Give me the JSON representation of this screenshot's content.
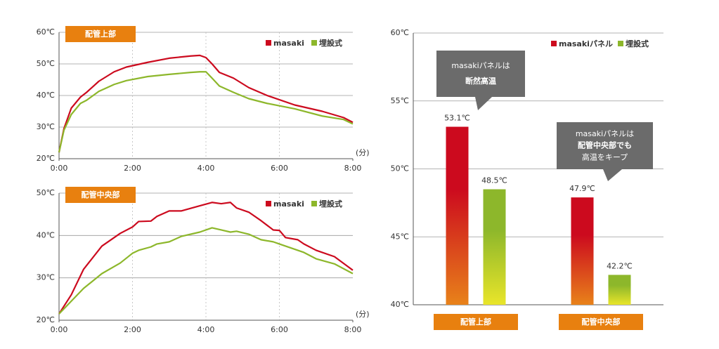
{
  "chart_data": [
    {
      "type": "line",
      "title": "配管上部",
      "x_label": "(分)",
      "x": [
        0,
        8,
        20,
        35,
        45,
        65,
        90,
        110,
        145,
        180,
        215,
        230,
        240,
        250,
        262,
        285,
        310,
        340,
        385,
        430,
        465,
        480
      ],
      "xlim": [
        0,
        480
      ],
      "xticks": [
        {
          "value": 0,
          "label": "0:00"
        },
        {
          "value": 120,
          "label": "2:00"
        },
        {
          "value": 240,
          "label": "4:00"
        },
        {
          "value": 360,
          "label": "6:00"
        },
        {
          "value": 480,
          "label": "8:00"
        }
      ],
      "ylim": [
        20,
        60
      ],
      "yticks": [
        {
          "value": 60,
          "label": "60℃"
        },
        {
          "value": 50,
          "label": "50℃"
        },
        {
          "value": 40,
          "label": "40℃"
        },
        {
          "value": 30,
          "label": "30℃"
        },
        {
          "value": 20,
          "label": "20℃"
        }
      ],
      "grid": true,
      "series": [
        {
          "name": "masaki",
          "color": "#cc0a1e",
          "values": [
            22,
            29.5,
            36,
            39.5,
            41,
            44.5,
            47.5,
            49,
            50.5,
            51.8,
            52.5,
            52.7,
            52,
            50,
            47.3,
            45.5,
            42.5,
            40,
            37,
            35,
            33,
            31.5
          ]
        },
        {
          "name": "埋設式",
          "color": "#8db72b",
          "values": [
            22,
            29,
            34,
            37.5,
            38.5,
            41.3,
            43.5,
            44.7,
            46,
            46.7,
            47.3,
            47.5,
            47.5,
            45.5,
            43,
            41,
            39,
            37.5,
            35.8,
            33.5,
            32.4,
            31
          ]
        }
      ]
    },
    {
      "type": "line",
      "title": "配管中央部",
      "x_label": "(分)",
      "x": [
        0,
        20,
        40,
        70,
        100,
        120,
        130,
        150,
        160,
        180,
        200,
        230,
        250,
        265,
        280,
        290,
        310,
        330,
        350,
        360,
        370,
        390,
        400,
        420,
        450,
        480
      ],
      "xlim": [
        0,
        480
      ],
      "xticks": [
        {
          "value": 0,
          "label": "0:00"
        },
        {
          "value": 120,
          "label": "2:00"
        },
        {
          "value": 240,
          "label": "4:00"
        },
        {
          "value": 360,
          "label": "6:00"
        },
        {
          "value": 480,
          "label": "8:00"
        }
      ],
      "ylim": [
        20,
        50
      ],
      "yticks": [
        {
          "value": 50,
          "label": "50℃"
        },
        {
          "value": 40,
          "label": "40℃"
        },
        {
          "value": 30,
          "label": "30℃"
        },
        {
          "value": 20,
          "label": "20℃"
        }
      ],
      "grid": true,
      "series": [
        {
          "name": "masaki",
          "color": "#cc0a1e",
          "values": [
            21.5,
            26,
            32,
            37.5,
            40.5,
            42,
            43.3,
            43.4,
            44.5,
            45.8,
            45.8,
            47,
            47.8,
            47.5,
            47.8,
            46.5,
            45.5,
            43.5,
            41.3,
            41.2,
            39.5,
            39,
            38,
            36.5,
            35,
            31.8
          ]
        },
        {
          "name": "埋設式",
          "color": "#8db72b",
          "values": [
            21.5,
            24.5,
            27.5,
            31,
            33.5,
            35.8,
            36.5,
            37.3,
            38,
            38.5,
            39.8,
            40.8,
            41.8,
            41.3,
            40.8,
            41,
            40.3,
            39,
            38.5,
            38,
            37.5,
            36.5,
            36,
            34.5,
            33.3,
            31
          ]
        }
      ]
    },
    {
      "type": "bar",
      "categories": [
        "配管上部",
        "配管中央部"
      ],
      "ylim": [
        40,
        60
      ],
      "yticks": [
        {
          "value": 60,
          "label": "60℃"
        },
        {
          "value": 55,
          "label": "55℃"
        },
        {
          "value": 50,
          "label": "50℃"
        },
        {
          "value": 45,
          "label": "45℃"
        },
        {
          "value": 40,
          "label": "40℃"
        }
      ],
      "grid": true,
      "series": [
        {
          "name": "masakiパネル",
          "color": "#cc0a1e",
          "color2": "#e8821a",
          "values": [
            53.1,
            47.9
          ],
          "value_labels": [
            "53.1℃",
            "47.9℃"
          ]
        },
        {
          "name": "埋設式",
          "color": "#8db72b",
          "color2": "#e9e52a",
          "values": [
            48.5,
            42.2
          ],
          "value_labels": [
            "48.5℃",
            "42.2℃"
          ]
        }
      ],
      "annotations": [
        {
          "lines": [
            "masakiパネルは",
            "断然高温"
          ]
        },
        {
          "lines": [
            "masakiパネルは",
            "配管中央部でも",
            "高温をキープ"
          ]
        }
      ]
    }
  ]
}
